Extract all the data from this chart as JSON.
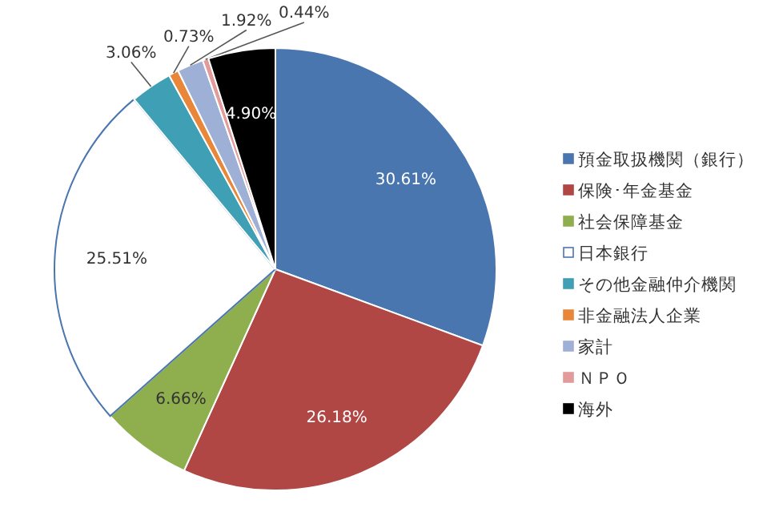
{
  "chart_data": {
    "type": "pie",
    "legend": "right",
    "categories": [
      "預金取扱機関（銀行）",
      "保険･年金基金",
      "社会保障基金",
      "日本銀行",
      "その他金融仲介機関",
      "非金融法人企業",
      "家計",
      "ＮＰＯ",
      "海外"
    ],
    "values": [
      30.61,
      26.18,
      6.66,
      25.51,
      3.06,
      0.73,
      1.92,
      0.44,
      4.9
    ],
    "colors": [
      "#4a76b0",
      "#b04745",
      "#8fae4e",
      "#ffffff",
      "#3f9fb5",
      "#e8873a",
      "#9fb0d6",
      "#e39a9a",
      "#000000"
    ],
    "value_labels": [
      "30.61%",
      "26.18%",
      "6.66%",
      "25.51%",
      "3.06%",
      "0.73%",
      "1.92%",
      "0.44%",
      "4.90%"
    ]
  }
}
